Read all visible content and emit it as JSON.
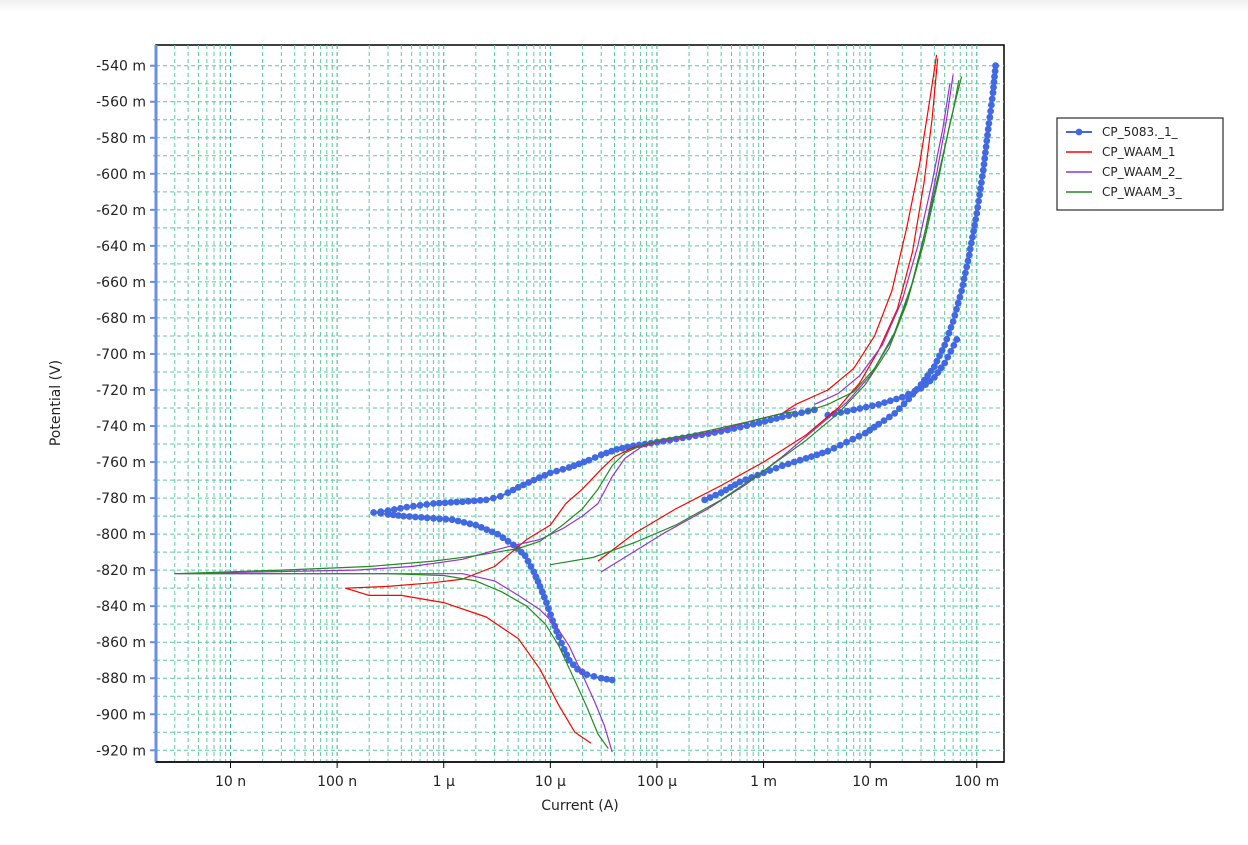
{
  "chart_data": {
    "type": "line",
    "title": "",
    "xlabel": "Current (A)",
    "ylabel": "Potential (V)",
    "x_scale": "log",
    "xlim": [
      2e-09,
      0.18
    ],
    "ylim": [
      -0.9265,
      -0.5285
    ],
    "x_ticks": [
      {
        "value": 1e-08,
        "label": "10 n"
      },
      {
        "value": 1e-07,
        "label": "100 n"
      },
      {
        "value": 1e-06,
        "label": "1 µ"
      },
      {
        "value": 1e-05,
        "label": "10 µ"
      },
      {
        "value": 0.0001,
        "label": "100 µ"
      },
      {
        "value": 0.001,
        "label": "1 m"
      },
      {
        "value": 0.01,
        "label": "10 m"
      },
      {
        "value": 0.1,
        "label": "100 m"
      }
    ],
    "y_ticks": [
      {
        "value": -0.54,
        "label": "-540 m"
      },
      {
        "value": -0.56,
        "label": "-560 m"
      },
      {
        "value": -0.58,
        "label": "-580 m"
      },
      {
        "value": -0.6,
        "label": "-600 m"
      },
      {
        "value": -0.62,
        "label": "-620 m"
      },
      {
        "value": -0.64,
        "label": "-640 m"
      },
      {
        "value": -0.66,
        "label": "-660 m"
      },
      {
        "value": -0.68,
        "label": "-680 m"
      },
      {
        "value": -0.7,
        "label": "-700 m"
      },
      {
        "value": -0.72,
        "label": "-720 m"
      },
      {
        "value": -0.74,
        "label": "-740 m"
      },
      {
        "value": -0.76,
        "label": "-760 m"
      },
      {
        "value": -0.78,
        "label": "-780 m"
      },
      {
        "value": -0.8,
        "label": "-800 m"
      },
      {
        "value": -0.82,
        "label": "-820 m"
      },
      {
        "value": -0.84,
        "label": "-840 m"
      },
      {
        "value": -0.86,
        "label": "-860 m"
      },
      {
        "value": -0.88,
        "label": "-880 m"
      },
      {
        "value": -0.9,
        "label": "-900 m"
      },
      {
        "value": -0.92,
        "label": "-920 m"
      }
    ],
    "grid": true,
    "legend_position": "right-top",
    "series": [
      {
        "name": "CP_5083._1_",
        "color": "#4169e1",
        "marker": "circle",
        "segments": [
          [
            [
              3.8e-05,
              -0.881
            ],
            [
              3e-05,
              -0.88
            ],
            [
              2.2e-05,
              -0.878
            ],
            [
              1.8e-05,
              -0.875
            ],
            [
              1.5e-05,
              -0.87
            ],
            [
              1.35e-05,
              -0.864
            ],
            [
              1.2e-05,
              -0.857
            ],
            [
              1.05e-05,
              -0.848
            ],
            [
              9.2e-06,
              -0.838
            ],
            [
              8e-06,
              -0.829
            ],
            [
              7e-06,
              -0.821
            ],
            [
              5.8e-06,
              -0.812
            ],
            [
              4.5e-06,
              -0.806
            ],
            [
              3.2e-06,
              -0.8
            ],
            [
              2e-06,
              -0.795
            ],
            [
              1.2e-06,
              -0.792
            ],
            [
              7e-07,
              -0.791
            ],
            [
              4.2e-07,
              -0.79
            ],
            [
              3e-07,
              -0.789
            ],
            [
              2.2e-07,
              -0.788
            ],
            [
              3e-07,
              -0.787
            ],
            [
              4.5e-07,
              -0.785
            ],
            [
              8e-07,
              -0.783
            ],
            [
              1.5e-06,
              -0.782
            ],
            [
              2.5e-06,
              -0.781
            ],
            [
              3.4e-06,
              -0.779
            ],
            [
              4e-06,
              -0.777
            ],
            [
              5e-06,
              -0.774
            ],
            [
              7e-06,
              -0.77
            ],
            [
              1e-05,
              -0.766
            ],
            [
              1.5e-05,
              -0.763
            ],
            [
              2.3e-05,
              -0.759
            ],
            [
              3e-05,
              -0.756
            ],
            [
              4.2e-05,
              -0.753
            ],
            [
              6e-05,
              -0.751
            ],
            [
              0.0001,
              -0.749
            ],
            [
              0.0002,
              -0.746
            ],
            [
              0.0004,
              -0.743
            ],
            [
              0.0008,
              -0.739
            ],
            [
              0.0015,
              -0.735
            ],
            [
              0.003,
              -0.731
            ]
          ],
          [
            [
              0.00028,
              -0.781
            ],
            [
              0.0004,
              -0.777
            ],
            [
              0.0006,
              -0.771
            ],
            [
              0.001,
              -0.766
            ],
            [
              0.0015,
              -0.762
            ],
            [
              0.0025,
              -0.758
            ],
            [
              0.004,
              -0.754
            ],
            [
              0.006,
              -0.749
            ],
            [
              0.009,
              -0.744
            ],
            [
              0.012,
              -0.739
            ],
            [
              0.017,
              -0.733
            ],
            [
              0.023,
              -0.725
            ],
            [
              0.03,
              -0.717
            ],
            [
              0.04,
              -0.707
            ],
            [
              0.05,
              -0.695
            ],
            [
              0.06,
              -0.682
            ],
            [
              0.072,
              -0.665
            ],
            [
              0.085,
              -0.645
            ],
            [
              0.1,
              -0.622
            ],
            [
              0.115,
              -0.598
            ],
            [
              0.13,
              -0.572
            ],
            [
              0.142,
              -0.555
            ],
            [
              0.15,
              -0.54
            ]
          ],
          [
            [
              0.004,
              -0.734
            ],
            [
              0.007,
              -0.731
            ],
            [
              0.012,
              -0.728
            ],
            [
              0.02,
              -0.724
            ],
            [
              0.03,
              -0.719
            ],
            [
              0.04,
              -0.713
            ],
            [
              0.05,
              -0.705
            ],
            [
              0.065,
              -0.692
            ]
          ]
        ]
      },
      {
        "name": "CP_WAAM_1",
        "color": "#ff0000",
        "marker": "none",
        "segments": [
          [
            [
              2.4e-05,
              -0.916
            ],
            [
              1.7e-05,
              -0.91
            ],
            [
              1.2e-05,
              -0.895
            ],
            [
              8e-06,
              -0.875
            ],
            [
              5e-06,
              -0.858
            ],
            [
              2.5e-06,
              -0.846
            ],
            [
              1e-06,
              -0.838
            ],
            [
              4e-07,
              -0.834
            ],
            [
              2e-07,
              -0.834
            ],
            [
              1.2e-07,
              -0.83
            ],
            [
              3e-07,
              -0.829
            ],
            [
              8e-07,
              -0.827
            ],
            [
              1.5e-06,
              -0.825
            ],
            [
              3e-06,
              -0.818
            ],
            [
              6e-06,
              -0.803
            ],
            [
              1e-05,
              -0.795
            ],
            [
              1.4e-05,
              -0.783
            ],
            [
              2e-05,
              -0.775
            ],
            [
              3e-05,
              -0.764
            ],
            [
              4e-05,
              -0.757
            ],
            [
              6e-05,
              -0.752
            ],
            [
              0.0001,
              -0.749
            ],
            [
              0.0002,
              -0.746
            ],
            [
              0.0004,
              -0.742
            ],
            [
              0.0008,
              -0.737
            ],
            [
              0.0015,
              -0.733
            ],
            [
              0.002,
              -0.728
            ]
          ],
          [
            [
              2.8e-05,
              -0.815
            ],
            [
              6e-05,
              -0.8
            ],
            [
              0.00015,
              -0.786
            ],
            [
              0.0004,
              -0.773
            ],
            [
              0.001,
              -0.76
            ],
            [
              0.0025,
              -0.745
            ],
            [
              0.005,
              -0.73
            ],
            [
              0.008,
              -0.716
            ],
            [
              0.012,
              -0.698
            ],
            [
              0.018,
              -0.675
            ],
            [
              0.025,
              -0.643
            ],
            [
              0.032,
              -0.605
            ],
            [
              0.038,
              -0.57
            ],
            [
              0.043,
              -0.536
            ]
          ],
          [
            [
              0.002,
              -0.728
            ],
            [
              0.004,
              -0.72
            ],
            [
              0.007,
              -0.708
            ],
            [
              0.011,
              -0.69
            ],
            [
              0.016,
              -0.665
            ],
            [
              0.022,
              -0.63
            ],
            [
              0.029,
              -0.595
            ],
            [
              0.036,
              -0.56
            ],
            [
              0.042,
              -0.534
            ]
          ]
        ]
      },
      {
        "name": "CP_WAAM_2_",
        "color": "#9932cc",
        "marker": "none",
        "segments": [
          [
            [
              3.8e-05,
              -0.921
            ],
            [
              3.2e-05,
              -0.906
            ],
            [
              2.6e-05,
              -0.893
            ],
            [
              2e-05,
              -0.878
            ],
            [
              1.5e-05,
              -0.862
            ],
            [
              1.1e-05,
              -0.85
            ],
            [
              8e-06,
              -0.842
            ],
            [
              5e-06,
              -0.834
            ],
            [
              3e-06,
              -0.826
            ],
            [
              1.5e-06,
              -0.822
            ],
            [
              5e-07,
              -0.822
            ],
            [
              1e-07,
              -0.822
            ],
            [
              2e-08,
              -0.822
            ],
            [
              3e-09,
              -0.822
            ],
            [
              2e-08,
              -0.821
            ],
            [
              1.5e-07,
              -0.82
            ],
            [
              5e-07,
              -0.818
            ],
            [
              1.5e-06,
              -0.814
            ],
            [
              4e-06,
              -0.807
            ],
            [
              8e-06,
              -0.803
            ],
            [
              1.3e-05,
              -0.797
            ],
            [
              2e-05,
              -0.79
            ],
            [
              2.8e-05,
              -0.783
            ],
            [
              3.8e-05,
              -0.768
            ],
            [
              5e-05,
              -0.758
            ],
            [
              7e-05,
              -0.752
            ],
            [
              0.0001,
              -0.749
            ],
            [
              0.0002,
              -0.746
            ],
            [
              0.0004,
              -0.742
            ],
            [
              0.0008,
              -0.737
            ],
            [
              0.0015,
              -0.733
            ],
            [
              0.002,
              -0.73
            ]
          ],
          [
            [
              3e-05,
              -0.821
            ],
            [
              6e-05,
              -0.81
            ],
            [
              0.00012,
              -0.799
            ],
            [
              0.0003,
              -0.786
            ],
            [
              0.0007,
              -0.772
            ],
            [
              0.0015,
              -0.757
            ],
            [
              0.003,
              -0.742
            ],
            [
              0.006,
              -0.727
            ],
            [
              0.01,
              -0.712
            ],
            [
              0.016,
              -0.692
            ],
            [
              0.023,
              -0.668
            ],
            [
              0.032,
              -0.635
            ],
            [
              0.042,
              -0.6
            ],
            [
              0.052,
              -0.57
            ],
            [
              0.06,
              -0.545
            ]
          ],
          [
            [
              0.003,
              -0.728
            ],
            [
              0.005,
              -0.722
            ],
            [
              0.008,
              -0.712
            ],
            [
              0.013,
              -0.695
            ],
            [
              0.02,
              -0.67
            ],
            [
              0.028,
              -0.64
            ],
            [
              0.038,
              -0.605
            ],
            [
              0.048,
              -0.575
            ],
            [
              0.056,
              -0.55
            ]
          ]
        ]
      },
      {
        "name": "CP_WAAM_3_",
        "color": "#228b22",
        "marker": "none",
        "segments": [
          [
            [
              3.5e-05,
              -0.919
            ],
            [
              2.8e-05,
              -0.911
            ],
            [
              2.2e-05,
              -0.896
            ],
            [
              1.6e-05,
              -0.878
            ],
            [
              1.2e-05,
              -0.862
            ],
            [
              9e-06,
              -0.85
            ],
            [
              6e-06,
              -0.84
            ],
            [
              3.5e-06,
              -0.832
            ],
            [
              2e-06,
              -0.826
            ],
            [
              1e-06,
              -0.823
            ],
            [
              3e-07,
              -0.822
            ],
            [
              5e-08,
              -0.822
            ],
            [
              3e-09,
              -0.822
            ],
            [
              3e-08,
              -0.82
            ],
            [
              2e-07,
              -0.818
            ],
            [
              8e-07,
              -0.815
            ],
            [
              2e-06,
              -0.812
            ],
            [
              5e-06,
              -0.808
            ],
            [
              8e-06,
              -0.804
            ],
            [
              1.3e-05,
              -0.795
            ],
            [
              2e-05,
              -0.786
            ],
            [
              2.8e-05,
              -0.775
            ],
            [
              3.8e-05,
              -0.762
            ],
            [
              5e-05,
              -0.755
            ],
            [
              7e-05,
              -0.751
            ],
            [
              0.0001,
              -0.748
            ],
            [
              0.0002,
              -0.745
            ],
            [
              0.0004,
              -0.741
            ],
            [
              0.0008,
              -0.737
            ],
            [
              0.0015,
              -0.733
            ],
            [
              0.002,
              -0.732
            ]
          ],
          [
            [
              1e-05,
              -0.817
            ],
            [
              2.5e-05,
              -0.813
            ],
            [
              6e-05,
              -0.805
            ],
            [
              0.00015,
              -0.795
            ],
            [
              0.0004,
              -0.781
            ],
            [
              0.001,
              -0.765
            ],
            [
              0.0025,
              -0.748
            ],
            [
              0.005,
              -0.733
            ],
            [
              0.009,
              -0.717
            ],
            [
              0.015,
              -0.697
            ],
            [
              0.022,
              -0.672
            ],
            [
              0.032,
              -0.638
            ],
            [
              0.044,
              -0.602
            ],
            [
              0.056,
              -0.572
            ],
            [
              0.066,
              -0.555
            ],
            [
              0.072,
              -0.546
            ]
          ],
          [
            [
              0.0025,
              -0.732
            ],
            [
              0.004,
              -0.728
            ],
            [
              0.007,
              -0.721
            ],
            [
              0.011,
              -0.708
            ],
            [
              0.017,
              -0.688
            ],
            [
              0.025,
              -0.66
            ],
            [
              0.035,
              -0.625
            ],
            [
              0.048,
              -0.59
            ],
            [
              0.06,
              -0.565
            ],
            [
              0.068,
              -0.548
            ]
          ]
        ]
      }
    ]
  }
}
